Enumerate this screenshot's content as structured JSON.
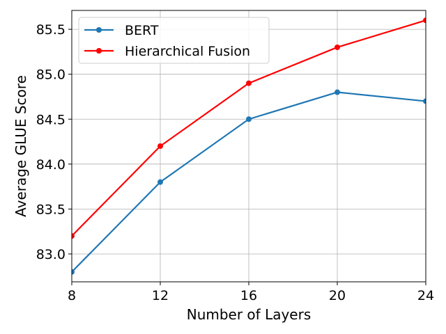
{
  "chart_data": {
    "type": "line",
    "title": "",
    "xlabel": "Number of Layers",
    "ylabel": "Average GLUE Score",
    "x": [
      8,
      12,
      16,
      20,
      24
    ],
    "x_ticks": [
      "8",
      "12",
      "16",
      "20",
      "24"
    ],
    "xlim": [
      8,
      24
    ],
    "y_ticks": [
      "83.0",
      "83.5",
      "84.0",
      "84.5",
      "85.0",
      "85.5"
    ],
    "ylim": [
      82.69,
      85.71
    ],
    "grid": true,
    "legend_position": "upper-left",
    "series": [
      {
        "name": "BERT",
        "color": "#1f77b4",
        "values": [
          82.8,
          83.8,
          84.5,
          84.8,
          84.7
        ]
      },
      {
        "name": "Hierarchical Fusion",
        "color": "#ff0000",
        "values": [
          83.2,
          84.2,
          84.9,
          85.3,
          85.6
        ]
      }
    ]
  }
}
